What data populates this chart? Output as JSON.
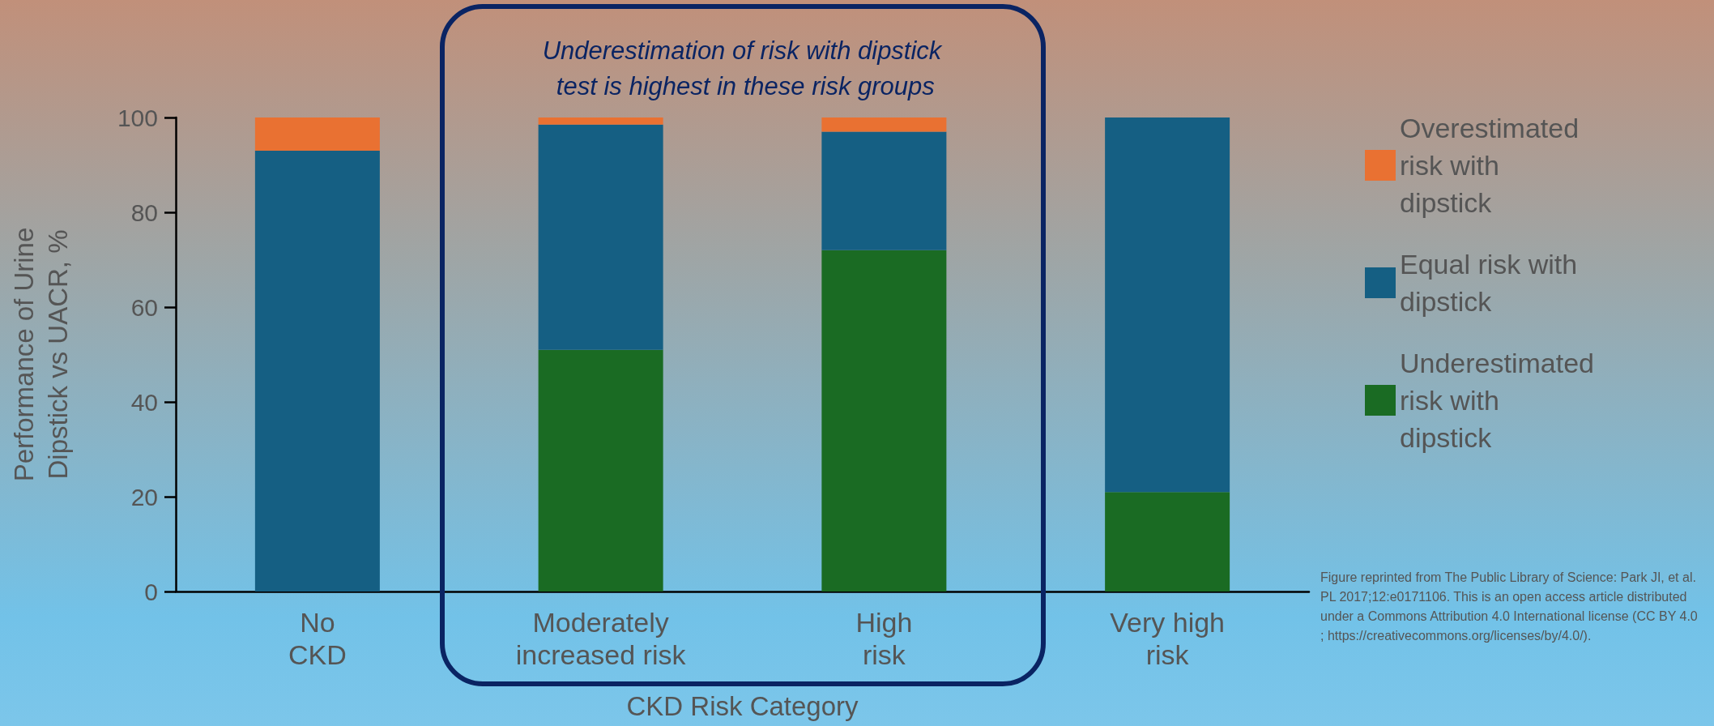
{
  "chart_data": {
    "type": "bar",
    "stacked": true,
    "ylabel": "Performance of Urine\nDipstick vs UACR, %",
    "xlabel": "CKD Risk Category",
    "categories": [
      "No\nCKD",
      "Moderately\nincreased risk",
      "High\nrisk",
      "Very high\nrisk"
    ],
    "series": [
      {
        "name": "Underestimated risk with dipstick",
        "color": "#1a6b23",
        "values": [
          0,
          51,
          72,
          21
        ]
      },
      {
        "name": "Equal risk with dipstick",
        "color": "#155f83",
        "values": [
          93,
          47.5,
          25,
          79
        ]
      },
      {
        "name": "Overestimated risk with dipstick",
        "color": "#e97132",
        "values": [
          7,
          1.5,
          3,
          0
        ]
      }
    ],
    "ylim": [
      0,
      100
    ],
    "yticks": [
      0,
      20,
      40,
      60,
      80,
      100
    ],
    "grid": false,
    "legend": "right",
    "annotations": [
      "Underestimation of risk with dipstick test is highest in these risk groups",
      "Figure reprinted from The Public Library of Science: Park JI, et al. PL 2017;12:e0171106. This is an open access article distributed under a Commons Attribution 4.0 International license (CC BY 4.0; https://creativecommons.org/licenses/by/4.0/)."
    ]
  }
}
